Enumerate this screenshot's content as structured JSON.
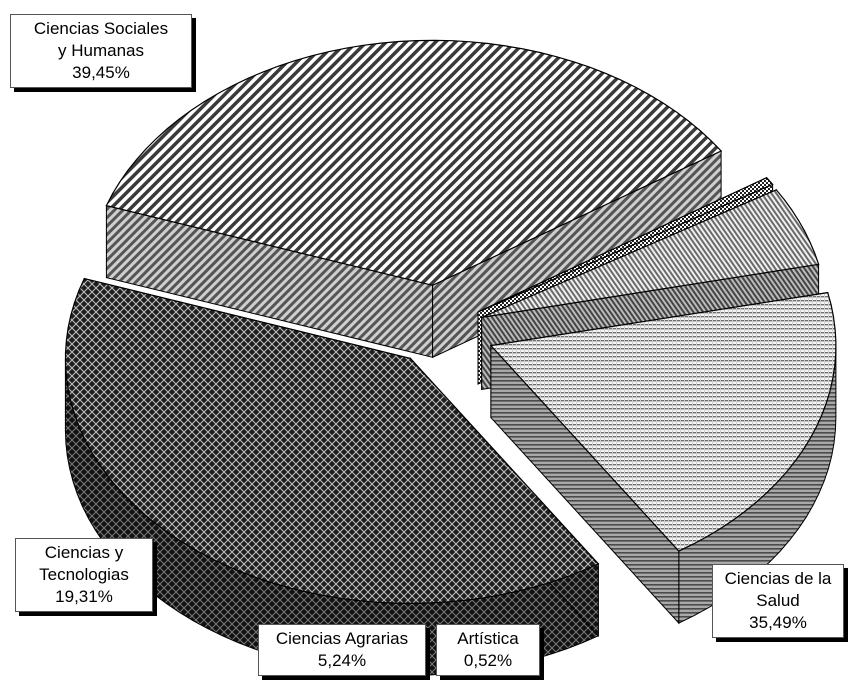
{
  "chart_data": {
    "type": "pie",
    "title": "",
    "unit": "%",
    "three_d": true,
    "exploded": true,
    "legend": "none",
    "slices": [
      {
        "name": "Ciencias Sociales y Humanas",
        "label_lines": [
          "Ciencias Sociales",
          "y Humanas"
        ],
        "value": 39.45,
        "value_label": "39,45%",
        "fill": "crosshatch",
        "colors": {
          "top": "#2a2a2a",
          "side": "#1a1a1a"
        }
      },
      {
        "name": "Ciencias de la Salud",
        "label_lines": [
          "Ciencias de la",
          "Salud"
        ],
        "value": 35.49,
        "value_label": "35,49%",
        "fill": "diagonal-stripes",
        "colors": {
          "top": "#555555",
          "side": "#777777"
        }
      },
      {
        "name": "Artística",
        "label_lines": [
          "Artística"
        ],
        "value": 0.52,
        "value_label": "0,52%",
        "fill": "checker",
        "colors": {
          "top": "#444444",
          "side": "#666666"
        }
      },
      {
        "name": "Ciencias Agrarias",
        "label_lines": [
          "Ciencias Agrarias"
        ],
        "value": 5.24,
        "value_label": "5,24%",
        "fill": "diagonal-fine",
        "colors": {
          "top": "#8a8a8a",
          "side": "#6a6a6a"
        }
      },
      {
        "name": "Ciencias y Tecnologias",
        "label_lines": [
          "Ciencias y",
          "Tecnologias"
        ],
        "value": 19.31,
        "value_label": "19,31%",
        "fill": "horizontal-lines",
        "colors": {
          "top": "#9a9a9a",
          "side": "#777777"
        }
      }
    ]
  }
}
